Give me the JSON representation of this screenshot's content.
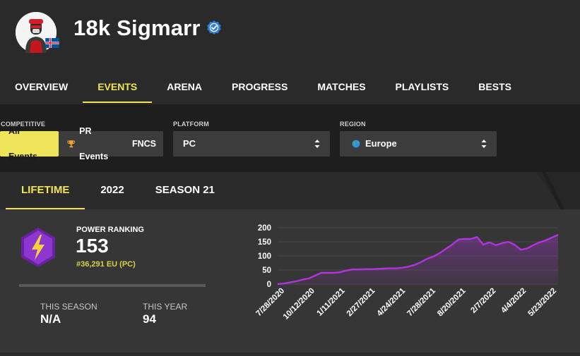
{
  "profile": {
    "name": "18k Sigmarr",
    "avatar_icon": "skin-avatar-icon",
    "flag_icon": "iceland-flag-icon",
    "verified_icon": "verified-check-icon",
    "accent_color": "#f0e55a"
  },
  "nav": {
    "tabs": [
      {
        "label": "OVERVIEW"
      },
      {
        "label": "EVENTS",
        "active": true
      },
      {
        "label": "ARENA"
      },
      {
        "label": "PROGRESS"
      },
      {
        "label": "MATCHES"
      },
      {
        "label": "PLAYLISTS"
      },
      {
        "label": "BESTS"
      }
    ]
  },
  "filters": {
    "competitive": {
      "label": "COMPETITIVE",
      "options": [
        {
          "label": "All Events",
          "active": true
        },
        {
          "label": "PR Events",
          "icon": "trophy-icon"
        },
        {
          "label": "FNCS"
        }
      ]
    },
    "platform": {
      "label": "PLATFORM",
      "value": "PC"
    },
    "region": {
      "label": "REGION",
      "value": "Europe",
      "icon": "globe-icon"
    }
  },
  "card": {
    "tabs": [
      {
        "label": "LIFETIME",
        "active": true
      },
      {
        "label": "2022"
      },
      {
        "label": "SEASON 21"
      }
    ],
    "power_ranking": {
      "label": "POWER RANKING",
      "value": "153",
      "rank": "#36,291 EU (PC)",
      "icon": "lightning-badge-icon"
    },
    "this_season": {
      "label": "THIS SEASON",
      "value": "N/A"
    },
    "this_year": {
      "label": "THIS YEAR",
      "value": "94"
    }
  },
  "chart_data": {
    "type": "area",
    "color": "#b233e0",
    "ylim": [
      0,
      200
    ],
    "yticks": [
      0,
      50,
      100,
      150,
      200
    ],
    "xticks": [
      "7/28/2020",
      "10/12/2020",
      "1/11/2021",
      "2/27/2021",
      "4/24/2021",
      "7/28/2021",
      "8/20/2021",
      "2/7/2022",
      "4/4/2022",
      "5/23/2022"
    ],
    "grid": true,
    "values": [
      0,
      2,
      6,
      10,
      16,
      20,
      30,
      40,
      40,
      40,
      42,
      48,
      52,
      52,
      53,
      53,
      54,
      55,
      56,
      56,
      58,
      62,
      68,
      78,
      90,
      98,
      110,
      125,
      140,
      158,
      160,
      160,
      167,
      140,
      148,
      138,
      145,
      150,
      140,
      122,
      126,
      138,
      148,
      155,
      165,
      175
    ]
  }
}
